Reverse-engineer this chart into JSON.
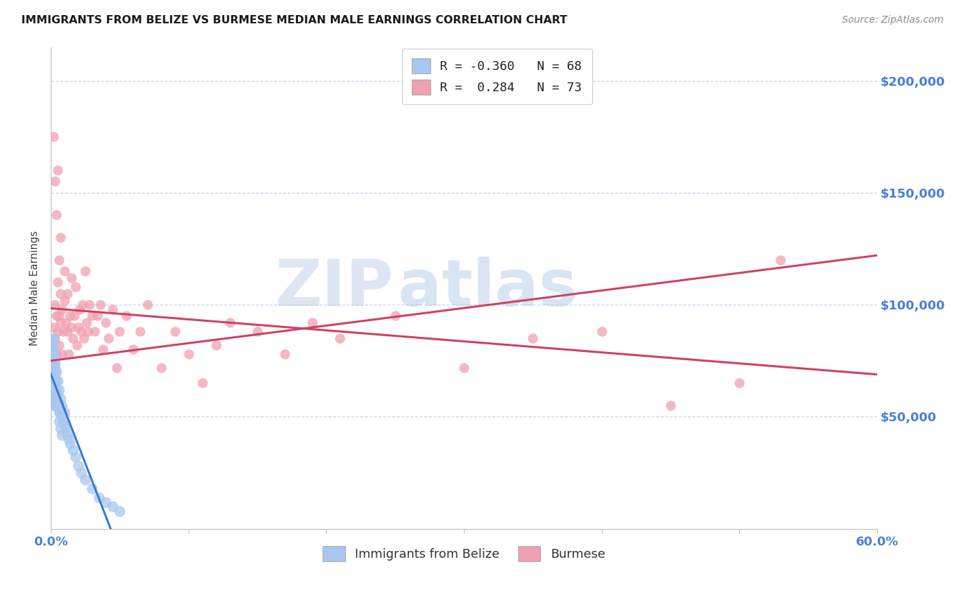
{
  "title": "IMMIGRANTS FROM BELIZE VS BURMESE MEDIAN MALE EARNINGS CORRELATION CHART",
  "source": "Source: ZipAtlas.com",
  "ylabel": "Median Male Earnings",
  "y_ticks": [
    0,
    50000,
    100000,
    150000,
    200000
  ],
  "x_min": 0.0,
  "x_max": 0.6,
  "y_min": 0,
  "y_max": 215000,
  "legend_R_belize": "-0.360",
  "legend_N_belize": "68",
  "legend_R_burmese": "0.284",
  "legend_N_burmese": "73",
  "color_belize": "#a8c8f0",
  "color_burmese": "#f0a0b0",
  "color_trend_belize": "#3a78d0",
  "color_trend_burmese": "#d04060",
  "color_axis_labels": "#4a7fd4",
  "watermark_zip": "ZIP",
  "watermark_atlas": "atlas",
  "background_color": "#ffffff",
  "grid_color": "#c8d4e8",
  "belize_x": [
    0.001,
    0.001,
    0.001,
    0.001,
    0.001,
    0.001,
    0.001,
    0.001,
    0.002,
    0.002,
    0.002,
    0.002,
    0.002,
    0.002,
    0.002,
    0.003,
    0.003,
    0.003,
    0.003,
    0.003,
    0.004,
    0.004,
    0.004,
    0.004,
    0.005,
    0.005,
    0.005,
    0.006,
    0.006,
    0.007,
    0.007,
    0.008,
    0.008,
    0.009,
    0.01,
    0.01,
    0.011,
    0.012,
    0.013,
    0.014,
    0.016,
    0.018,
    0.02,
    0.022,
    0.025,
    0.03,
    0.035,
    0.04,
    0.045,
    0.05,
    0.001,
    0.001,
    0.001,
    0.002,
    0.002,
    0.003,
    0.001,
    0.001,
    0.002,
    0.002,
    0.003,
    0.003,
    0.004,
    0.005,
    0.006,
    0.006,
    0.007,
    0.008
  ],
  "belize_y": [
    82000,
    78000,
    75000,
    72000,
    68000,
    65000,
    62000,
    58000,
    80000,
    76000,
    72000,
    68000,
    65000,
    60000,
    55000,
    74000,
    70000,
    66000,
    62000,
    58000,
    70000,
    66000,
    62000,
    55000,
    66000,
    60000,
    54000,
    62000,
    55000,
    58000,
    52000,
    55000,
    50000,
    48000,
    52000,
    46000,
    45000,
    42000,
    40000,
    38000,
    35000,
    32000,
    28000,
    25000,
    22000,
    18000,
    14000,
    12000,
    10000,
    8000,
    85000,
    80000,
    76000,
    84000,
    78000,
    72000,
    70000,
    64000,
    74000,
    68000,
    66000,
    60000,
    58000,
    55000,
    52000,
    48000,
    45000,
    42000
  ],
  "burmese_x": [
    0.002,
    0.003,
    0.003,
    0.004,
    0.004,
    0.005,
    0.005,
    0.006,
    0.006,
    0.007,
    0.007,
    0.008,
    0.008,
    0.009,
    0.01,
    0.01,
    0.011,
    0.012,
    0.012,
    0.013,
    0.014,
    0.015,
    0.015,
    0.016,
    0.017,
    0.018,
    0.019,
    0.02,
    0.021,
    0.022,
    0.023,
    0.024,
    0.025,
    0.026,
    0.027,
    0.028,
    0.03,
    0.032,
    0.034,
    0.036,
    0.038,
    0.04,
    0.042,
    0.045,
    0.048,
    0.05,
    0.055,
    0.06,
    0.065,
    0.07,
    0.08,
    0.09,
    0.1,
    0.11,
    0.12,
    0.13,
    0.15,
    0.17,
    0.19,
    0.21,
    0.25,
    0.3,
    0.35,
    0.4,
    0.45,
    0.5,
    0.53,
    0.002,
    0.003,
    0.004,
    0.005,
    0.006,
    0.007
  ],
  "burmese_y": [
    90000,
    85000,
    100000,
    95000,
    78000,
    110000,
    88000,
    95000,
    82000,
    92000,
    105000,
    78000,
    98000,
    88000,
    102000,
    115000,
    92000,
    88000,
    105000,
    78000,
    95000,
    90000,
    112000,
    85000,
    95000,
    108000,
    82000,
    90000,
    98000,
    88000,
    100000,
    85000,
    115000,
    92000,
    88000,
    100000,
    95000,
    88000,
    95000,
    100000,
    80000,
    92000,
    85000,
    98000,
    72000,
    88000,
    95000,
    80000,
    88000,
    100000,
    72000,
    88000,
    78000,
    65000,
    82000,
    92000,
    88000,
    78000,
    92000,
    85000,
    95000,
    72000,
    85000,
    88000,
    55000,
    65000,
    120000,
    175000,
    155000,
    140000,
    160000,
    120000,
    130000
  ]
}
